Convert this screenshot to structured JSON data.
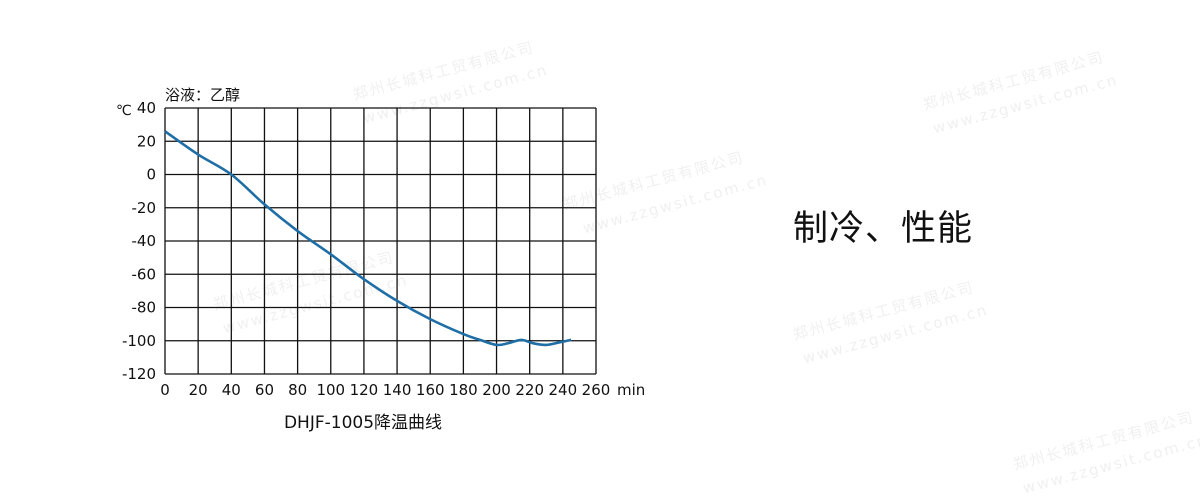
{
  "heading": "制冷、性能",
  "watermark": {
    "company": "郑州长城科工贸有限公司",
    "url": "www.zzgwsit.com.cn"
  },
  "chart_data": {
    "type": "line",
    "title": "DHJF-1005降温曲线",
    "annotation": "浴液：乙醇",
    "ylabel": "℃",
    "xlabel": "min",
    "xlim": [
      0,
      260
    ],
    "ylim": [
      -120,
      40
    ],
    "xticks": [
      0,
      20,
      40,
      60,
      80,
      100,
      120,
      140,
      160,
      180,
      200,
      220,
      240,
      260
    ],
    "yticks": [
      40,
      20,
      0,
      -20,
      -40,
      -60,
      -80,
      -100,
      -120
    ],
    "grid": true,
    "color": "#1f6ea6",
    "series": [
      {
        "x": [
          0,
          20,
          40,
          60,
          80,
          100,
          120,
          140,
          160,
          180,
          190,
          200,
          207,
          215,
          222,
          230,
          238,
          245
        ],
        "y": [
          26,
          12,
          0,
          -18,
          -34,
          -48,
          -63,
          -76,
          -87,
          -96,
          -99.5,
          -102.5,
          -101.5,
          -99.5,
          -101.5,
          -102.5,
          -101,
          -99.5
        ]
      }
    ]
  }
}
